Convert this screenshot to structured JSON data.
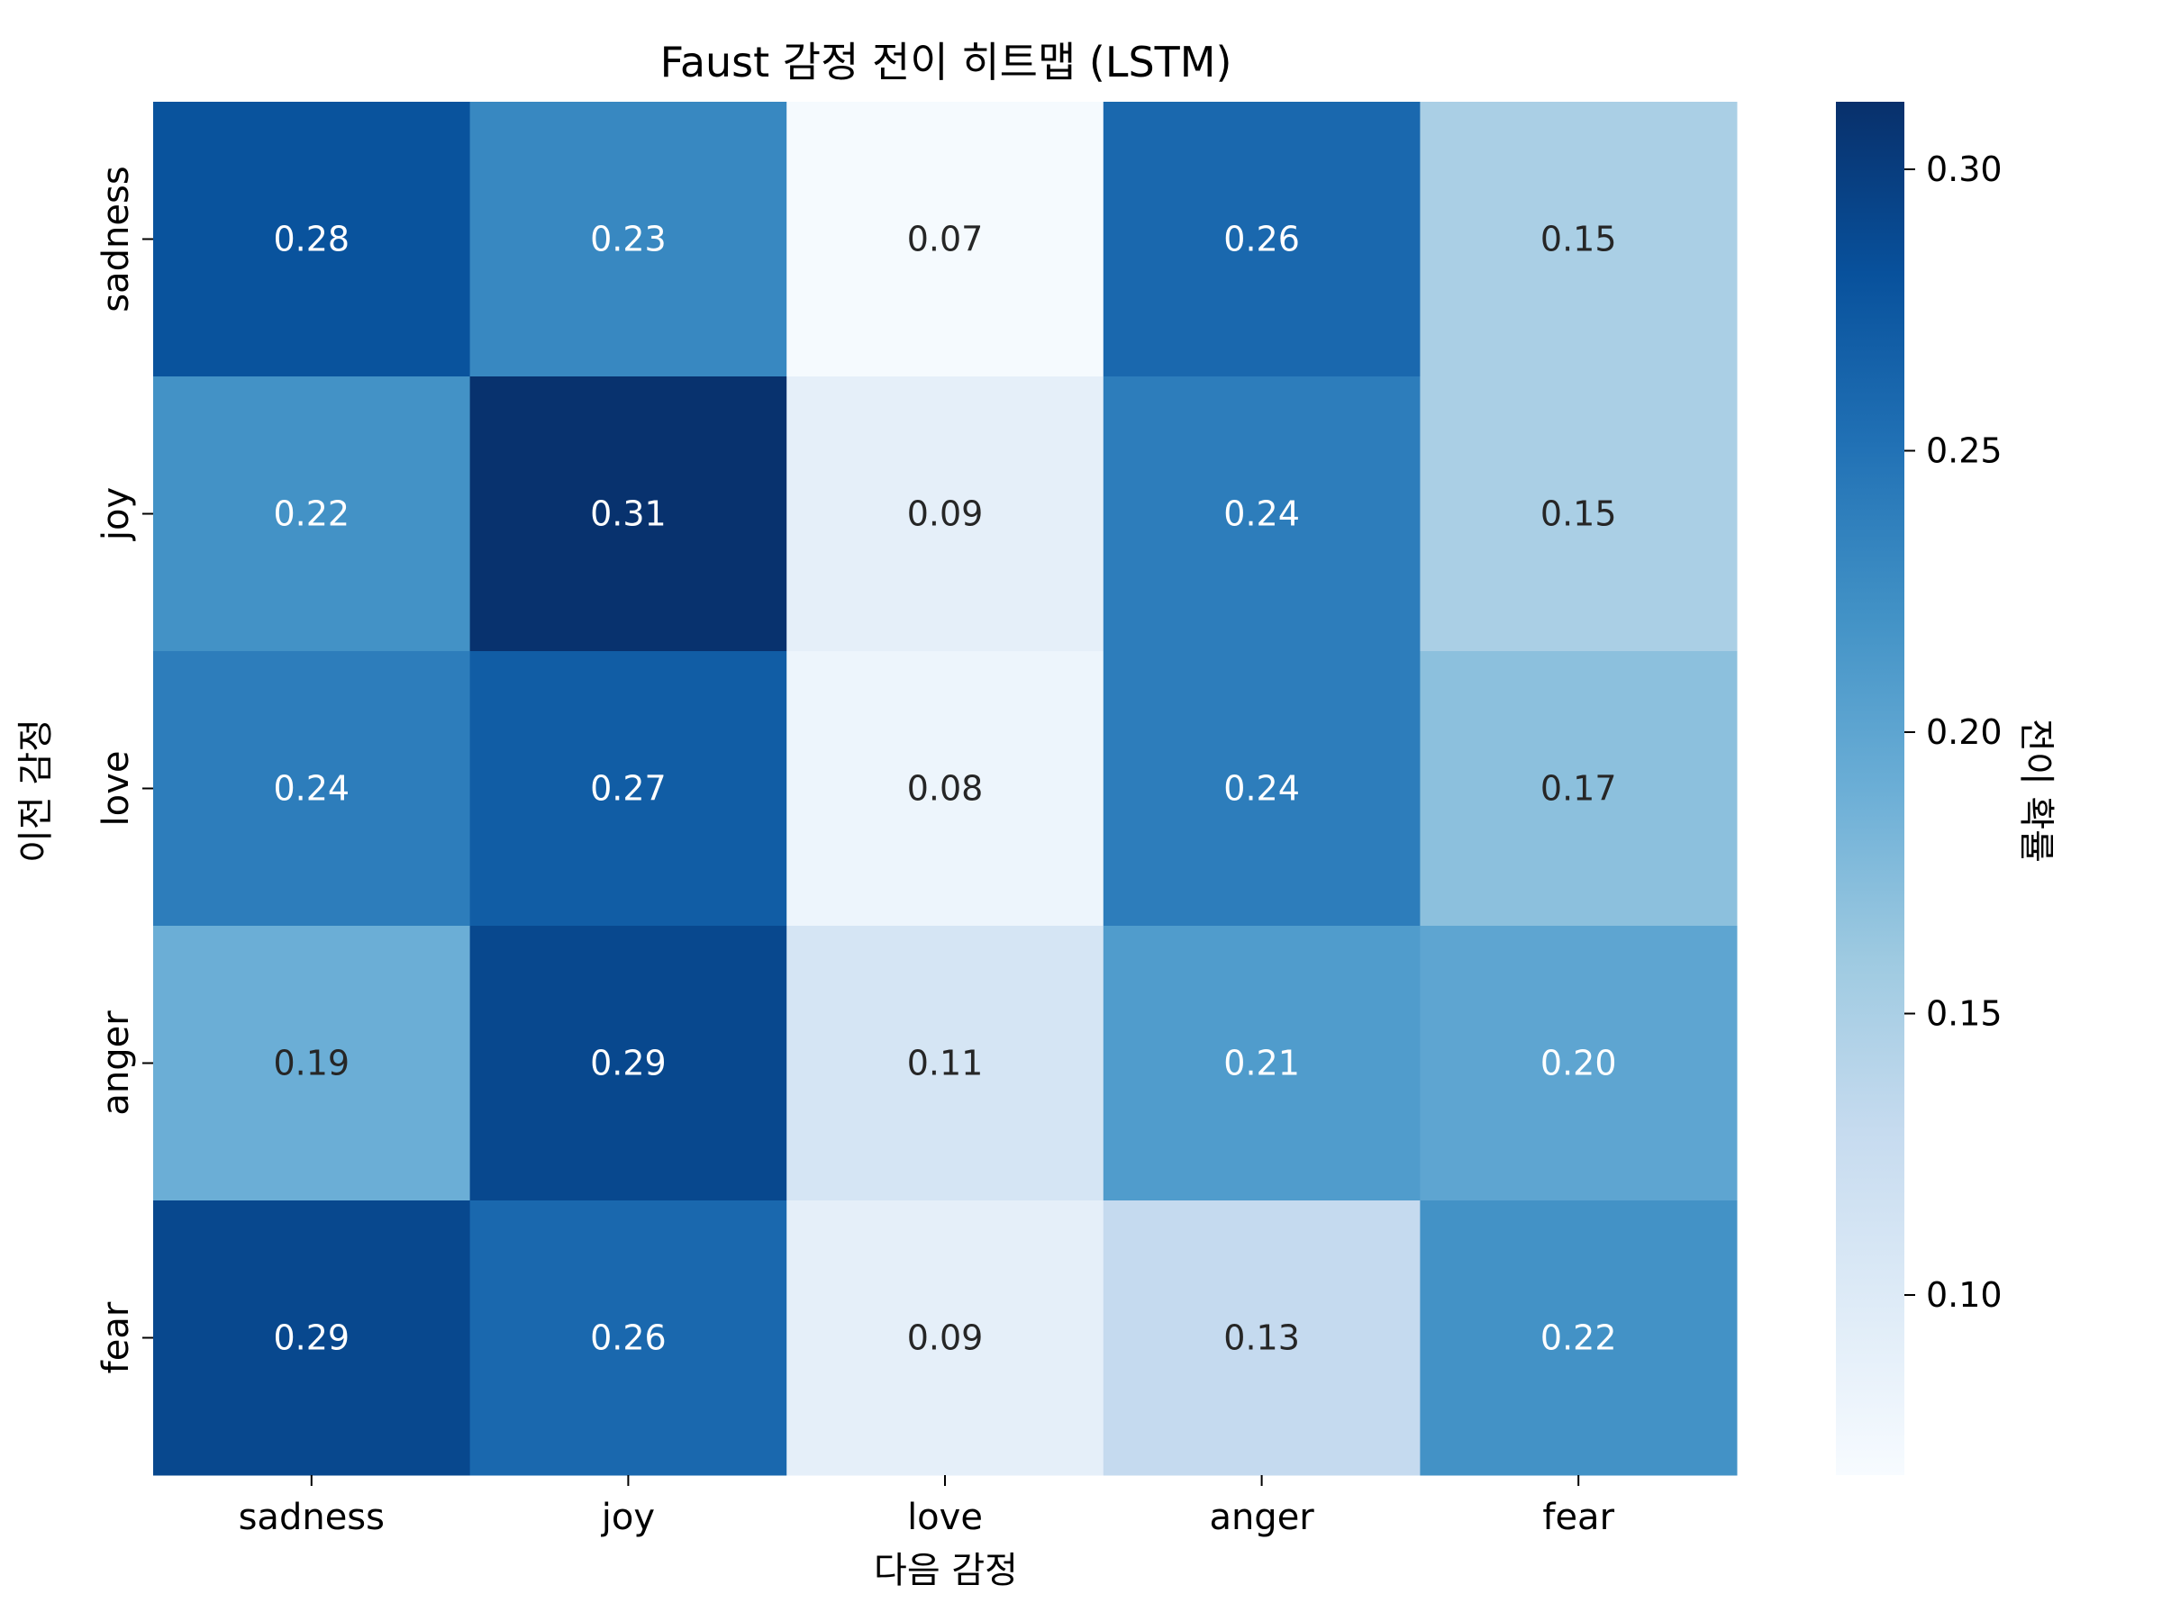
{
  "chart_data": {
    "type": "heatmap",
    "title": "Faust 감정 전이 히트맵 (LSTM)",
    "xlabel": "다음 감정",
    "ylabel": "이전 감정",
    "x_categories": [
      "sadness",
      "joy",
      "love",
      "anger",
      "fear"
    ],
    "y_categories": [
      "sadness",
      "joy",
      "love",
      "anger",
      "fear"
    ],
    "values": [
      [
        0.28,
        0.23,
        0.07,
        0.26,
        0.15
      ],
      [
        0.22,
        0.31,
        0.09,
        0.24,
        0.15
      ],
      [
        0.24,
        0.27,
        0.08,
        0.24,
        0.17
      ],
      [
        0.19,
        0.29,
        0.11,
        0.21,
        0.2
      ],
      [
        0.29,
        0.26,
        0.09,
        0.13,
        0.22
      ]
    ],
    "value_labels": [
      [
        "0.28",
        "0.23",
        "0.07",
        "0.26",
        "0.15"
      ],
      [
        "0.22",
        "0.31",
        "0.09",
        "0.24",
        "0.15"
      ],
      [
        "0.24",
        "0.27",
        "0.08",
        "0.24",
        "0.17"
      ],
      [
        "0.19",
        "0.29",
        "0.11",
        "0.21",
        "0.20"
      ],
      [
        "0.29",
        "0.26",
        "0.09",
        "0.13",
        "0.22"
      ]
    ],
    "colorbar": {
      "label": "전이 확률",
      "range": [
        0.068,
        0.312
      ],
      "ticks": [
        0.1,
        0.15,
        0.2,
        0.25,
        0.3
      ],
      "tick_labels": [
        "0.10",
        "0.15",
        "0.20",
        "0.25",
        "0.30"
      ],
      "colormap": "Blues",
      "colormap_stops": [
        "#f7fbff",
        "#deebf7",
        "#c6dbef",
        "#9ecae1",
        "#6baed6",
        "#4292c6",
        "#2171b5",
        "#08519c",
        "#08306b"
      ]
    },
    "grid": false
  }
}
